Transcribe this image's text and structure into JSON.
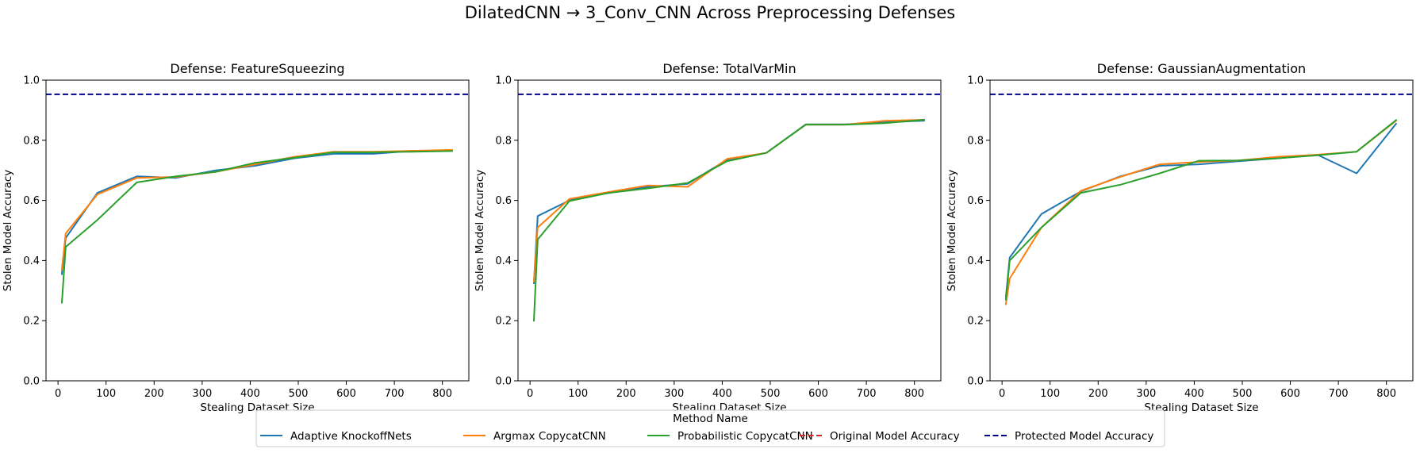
{
  "suptitle": "DilatedCNN → 3_Conv_CNN Across Preprocessing Defenses",
  "legend": {
    "title": "Method Name",
    "entries": [
      {
        "name": "Adaptive KnockoffNets",
        "color": "#1f77b4",
        "dashed": false
      },
      {
        "name": "Argmax CopycatCNN",
        "color": "#ff7f0e",
        "dashed": false
      },
      {
        "name": "Probabilistic CopycatCNN",
        "color": "#2ca02c",
        "dashed": false
      },
      {
        "name": "Original Model Accuracy",
        "color": "#d62728",
        "dashed": true
      },
      {
        "name": "Protected Model Accuracy",
        "color": "#00008b",
        "dashed": true
      }
    ]
  },
  "chart_data": [
    {
      "type": "line",
      "title": "Defense: FeatureSqueezing",
      "xlabel": "Stealing Dataset Size",
      "ylabel": "Stolen Model Accuracy",
      "xlim": [
        -25,
        855
      ],
      "ylim": [
        0,
        1.0
      ],
      "xticks": [
        0,
        100,
        200,
        300,
        400,
        500,
        600,
        700,
        800
      ],
      "yticks": [
        0.0,
        0.2,
        0.4,
        0.6,
        0.8,
        1.0
      ],
      "grid": false,
      "hlines": [
        {
          "name": "Protected Model Accuracy",
          "y": 0.953,
          "color": "#00008b"
        }
      ],
      "series": [
        {
          "name": "Adaptive KnockoffNets",
          "color": "#1f77b4",
          "x": [
            8,
            16,
            82,
            164,
            246,
            328,
            410,
            492,
            574,
            656,
            738,
            820
          ],
          "y": [
            0.355,
            0.475,
            0.625,
            0.68,
            0.675,
            0.7,
            0.715,
            0.74,
            0.755,
            0.755,
            0.765,
            0.765
          ]
        },
        {
          "name": "Argmax CopycatCNN",
          "color": "#ff7f0e",
          "x": [
            8,
            16,
            82,
            164,
            246,
            328,
            410,
            492,
            574,
            656,
            738,
            820
          ],
          "y": [
            0.37,
            0.49,
            0.62,
            0.675,
            0.678,
            0.695,
            0.72,
            0.745,
            0.762,
            0.762,
            0.765,
            0.768
          ]
        },
        {
          "name": "Probabilistic CopycatCNN",
          "color": "#2ca02c",
          "x": [
            8,
            16,
            82,
            164,
            246,
            328,
            410,
            492,
            574,
            656,
            738,
            820
          ],
          "y": [
            0.26,
            0.445,
            0.535,
            0.66,
            0.68,
            0.695,
            0.725,
            0.742,
            0.76,
            0.76,
            0.762,
            0.764
          ]
        }
      ]
    },
    {
      "type": "line",
      "title": "Defense: TotalVarMin",
      "xlabel": "Stealing Dataset Size",
      "ylabel": "Stolen Model Accuracy",
      "xlim": [
        -25,
        855
      ],
      "ylim": [
        0,
        1.0
      ],
      "xticks": [
        0,
        100,
        200,
        300,
        400,
        500,
        600,
        700,
        800
      ],
      "yticks": [
        0.0,
        0.2,
        0.4,
        0.6,
        0.8,
        1.0
      ],
      "grid": false,
      "hlines": [
        {
          "name": "Protected Model Accuracy",
          "y": 0.953,
          "color": "#00008b"
        }
      ],
      "series": [
        {
          "name": "Adaptive KnockoffNets",
          "color": "#1f77b4",
          "x": [
            8,
            16,
            82,
            164,
            246,
            328,
            410,
            492,
            574,
            656,
            738,
            820
          ],
          "y": [
            0.325,
            0.548,
            0.6,
            0.625,
            0.645,
            0.655,
            0.735,
            0.758,
            0.853,
            0.853,
            0.86,
            0.865
          ]
        },
        {
          "name": "Argmax CopycatCNN",
          "color": "#ff7f0e",
          "x": [
            8,
            16,
            82,
            164,
            246,
            328,
            410,
            492,
            574,
            656,
            738,
            820
          ],
          "y": [
            0.33,
            0.51,
            0.605,
            0.628,
            0.65,
            0.645,
            0.738,
            0.758,
            0.852,
            0.852,
            0.865,
            0.868
          ]
        },
        {
          "name": "Probabilistic CopycatCNN",
          "color": "#2ca02c",
          "x": [
            8,
            16,
            82,
            164,
            246,
            328,
            410,
            492,
            574,
            656,
            738,
            820
          ],
          "y": [
            0.2,
            0.47,
            0.598,
            0.625,
            0.64,
            0.658,
            0.73,
            0.758,
            0.852,
            0.852,
            0.857,
            0.868
          ]
        }
      ]
    },
    {
      "type": "line",
      "title": "Defense: GaussianAugmentation",
      "xlabel": "Stealing Dataset Size",
      "ylabel": "Stolen Model Accuracy",
      "xlim": [
        -25,
        855
      ],
      "ylim": [
        0,
        1.0
      ],
      "xticks": [
        0,
        100,
        200,
        300,
        400,
        500,
        600,
        700,
        800
      ],
      "yticks": [
        0.0,
        0.2,
        0.4,
        0.6,
        0.8,
        1.0
      ],
      "grid": false,
      "hlines": [
        {
          "name": "Protected Model Accuracy",
          "y": 0.953,
          "color": "#00008b"
        }
      ],
      "series": [
        {
          "name": "Adaptive KnockoffNets",
          "color": "#1f77b4",
          "x": [
            8,
            16,
            82,
            164,
            246,
            328,
            410,
            492,
            574,
            656,
            738,
            820
          ],
          "y": [
            0.28,
            0.41,
            0.555,
            0.63,
            0.68,
            0.715,
            0.72,
            0.73,
            0.74,
            0.752,
            0.69,
            0.855
          ]
        },
        {
          "name": "Argmax CopycatCNN",
          "color": "#ff7f0e",
          "x": [
            8,
            16,
            82,
            164,
            246,
            328,
            410,
            492,
            574,
            656,
            738,
            820
          ],
          "y": [
            0.255,
            0.34,
            0.51,
            0.632,
            0.678,
            0.72,
            0.728,
            0.733,
            0.745,
            0.752,
            0.762,
            0.865
          ]
        },
        {
          "name": "Probabilistic CopycatCNN",
          "color": "#2ca02c",
          "x": [
            8,
            16,
            82,
            164,
            246,
            328,
            410,
            492,
            574,
            656,
            738,
            820
          ],
          "y": [
            0.27,
            0.4,
            0.51,
            0.625,
            0.652,
            0.69,
            0.732,
            0.733,
            0.74,
            0.75,
            0.762,
            0.867
          ]
        }
      ]
    }
  ]
}
